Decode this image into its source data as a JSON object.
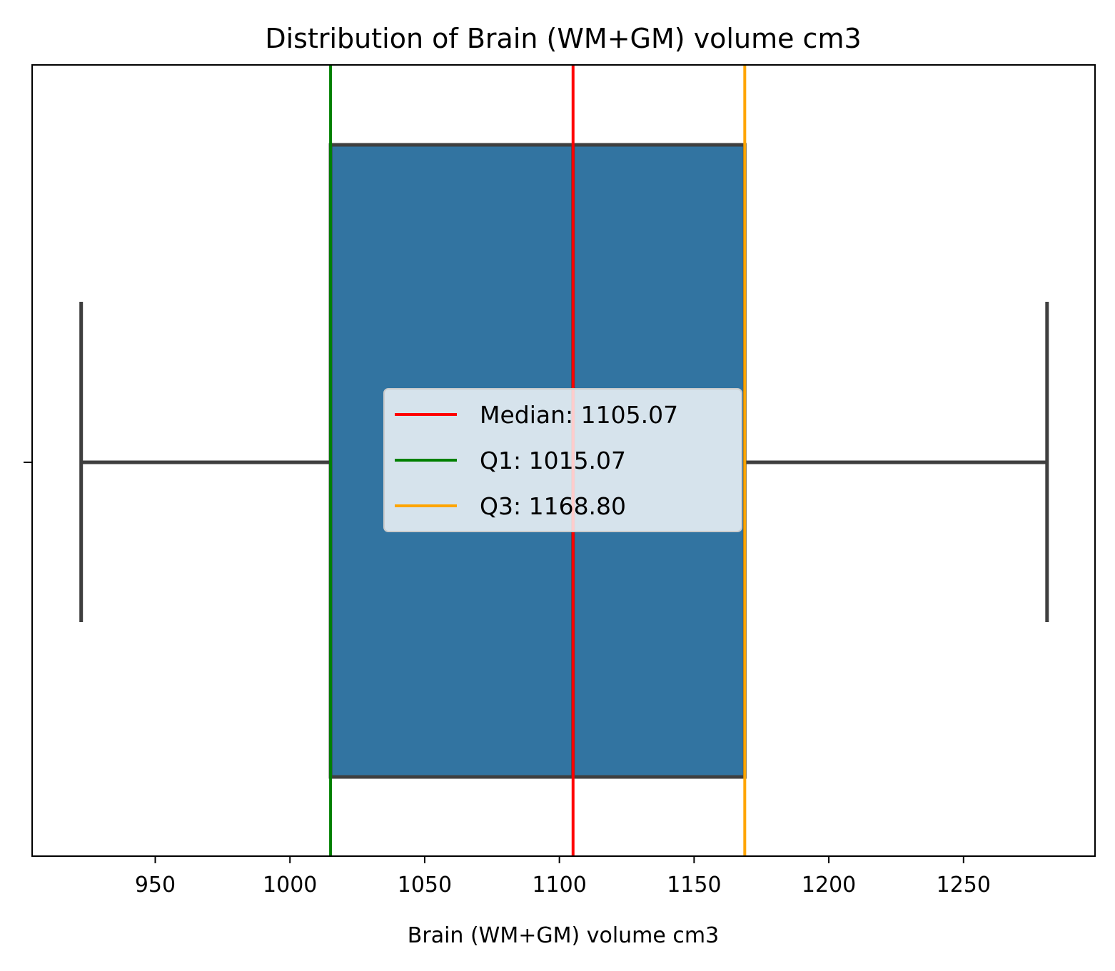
{
  "chart_data": {
    "type": "box",
    "title": "Distribution of Brain (WM+GM) volume cm3",
    "xlabel": "Brain (WM+GM) volume cm3",
    "ylabel": "",
    "xlim": [
      904.3,
      1298.8
    ],
    "xticks": [
      950,
      1000,
      1050,
      1100,
      1150,
      1200,
      1250
    ],
    "xtick_labels": [
      "950",
      "1000",
      "1050",
      "1100",
      "1150",
      "1200",
      "1250"
    ],
    "box": {
      "whisker_low": 922.5,
      "q1": 1015.07,
      "median": 1105.07,
      "q3": 1168.8,
      "whisker_high": 1281.0
    },
    "reference_lines": [
      {
        "name": "Median",
        "value": 1105.07,
        "color": "#ff0000",
        "label": "Median: 1105.07"
      },
      {
        "name": "Q1",
        "value": 1015.07,
        "color": "#008000",
        "label": "Q1: 1015.07"
      },
      {
        "name": "Q3",
        "value": 1168.8,
        "color": "#ffa500",
        "label": "Q3: 1168.80"
      }
    ],
    "box_color": "#3274a1",
    "line_color": "#3f3f3f",
    "legend_position": "center",
    "grid": false
  }
}
